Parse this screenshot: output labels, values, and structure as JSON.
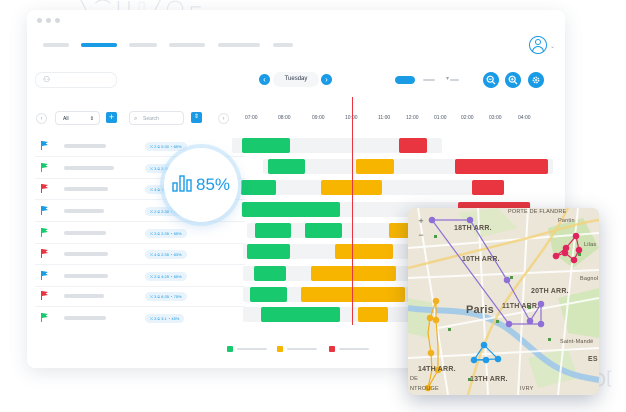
{
  "app": {
    "nav_links": 6,
    "active_nav_index": 1
  },
  "toolbar": {
    "date": "Tuesday",
    "prev_icon": "chevron-left-icon",
    "next_icon": "chevron-right-icon",
    "buttons": [
      "zoom-out-icon",
      "zoom-in-icon",
      "settings-icon"
    ]
  },
  "filters": {
    "select_value": "All",
    "search_placeholder": "Search",
    "add_label": "+",
    "prev_label": "‹",
    "next_label": "›"
  },
  "timeline": {
    "hours": [
      "07:00",
      "08:00",
      "09:00",
      "10:00",
      "11:00",
      "12:00",
      "01:00",
      "02:00",
      "03:00",
      "04:00"
    ]
  },
  "rows": [
    {
      "flag": "#1a9be6",
      "tag": "⛌ 2  ⊙ 0:30  ◔ 85%"
    },
    {
      "flag": "#18c96e",
      "tag": "⛌ 3  ⊙ 2:30  ◔ 85%"
    },
    {
      "flag": "#e8353f",
      "tag": "⛌ 4  ⊙ 1:45  ◔ 50%"
    },
    {
      "flag": "#1a9be6",
      "tag": "⛌ 2  ⊙ 2:30  ◔ 77%"
    },
    {
      "flag": "#18c96e",
      "tag": "⛌ 3  ⊙ 2:35  ◔ 85%"
    },
    {
      "flag": "#e8353f",
      "tag": "⛌ 4  ⊙ 2:35  ◔ 83%"
    },
    {
      "flag": "#1a9be6",
      "tag": "⛌ 2  ⊙ 4:25  ◔ 85%"
    },
    {
      "flag": "#e8353f",
      "tag": "⛌ 3  ⊙ 6:35  ◔ 75%"
    },
    {
      "flag": "#18c96e",
      "tag": "⛌ 3  ⊙ 3:1  ◔ 45%"
    }
  ],
  "colors": {
    "accent": "#1a9be6",
    "green": "#18c96e",
    "yellow": "#f7b500",
    "red": "#e8353f"
  },
  "utilization": {
    "value": "85%",
    "fraction": 0.85
  },
  "map": {
    "labels": {
      "arr18": "18TH ARR.",
      "arr10": "10TH ARR.",
      "arr11": "11TH ARR.",
      "arr20": "20TH ARR.",
      "arr14": "14TH ARR.",
      "arr13": "13TH ARR.",
      "paris": "Paris",
      "pantin": "Pantin",
      "bagnol": "Bagnol",
      "saint_mande": "Saint-Mandé",
      "lilas": "Lilas",
      "porte": "PORTE DE FLANDRE",
      "de": "DE",
      "ntrouge": "NTROUGE",
      "ivry": "IVRY",
      "es": "ES",
      "zoom_in": "+",
      "zoom_out": "−"
    }
  }
}
